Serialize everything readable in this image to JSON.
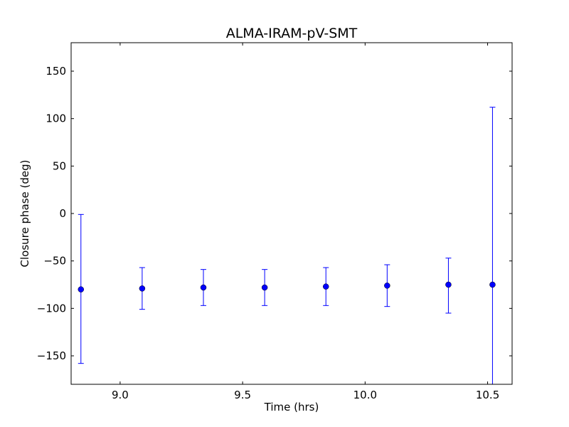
{
  "chart_data": {
    "type": "scatter",
    "title": "ALMA-IRAM-pV-SMT",
    "xlabel": "Time (hrs)",
    "ylabel": "Closure phase (deg)",
    "xlim": [
      8.8,
      10.6
    ],
    "ylim": [
      -180,
      180
    ],
    "xticks": [
      9.0,
      9.5,
      10.0,
      10.5
    ],
    "xtick_labels": [
      "9.0",
      "9.5",
      "10.0",
      "10.5"
    ],
    "yticks": [
      150,
      100,
      50,
      0,
      -50,
      -100,
      -150
    ],
    "ytick_labels": [
      "150",
      "100",
      "50",
      "0",
      "−50",
      "−100",
      "−150"
    ],
    "grid": false,
    "color": "#0000ff",
    "series": [
      {
        "x": [
          8.84,
          9.09,
          9.34,
          9.59,
          9.84,
          10.09,
          10.34,
          10.52
        ],
        "y": [
          -80,
          -79,
          -78,
          -78,
          -77,
          -76,
          -75,
          -75
        ],
        "err_low": [
          -158,
          -101,
          -97,
          -97,
          -97,
          -98,
          -105,
          -180
        ],
        "err_high": [
          -1,
          -57,
          -59,
          -59,
          -57,
          -54,
          -47,
          112
        ]
      }
    ]
  }
}
